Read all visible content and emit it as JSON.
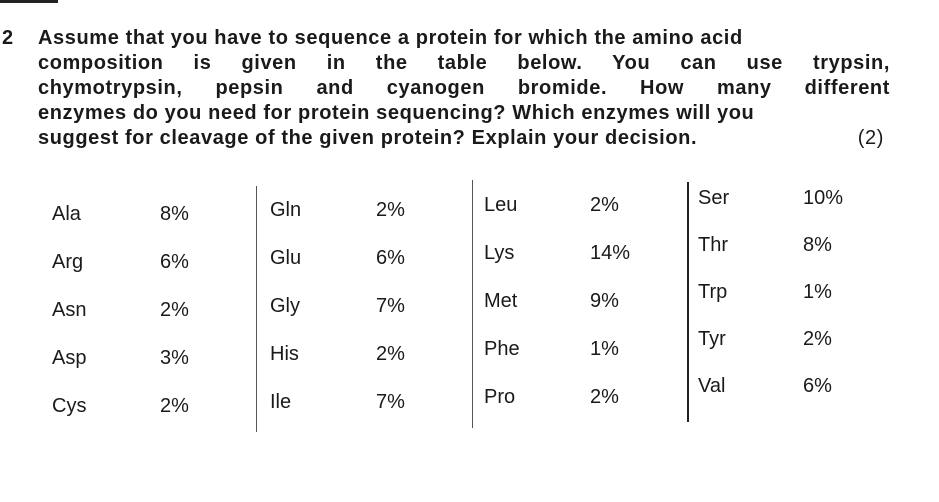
{
  "question": {
    "number": "2",
    "lines": [
      "Assume that you have to sequence a protein for which the amino acid",
      "composition is given in the table below. You can use trypsin,",
      "chymotrypsin, pepsin and cyanogen bromide. How many different",
      "enzymes do you need for protein sequencing? Which enzymes will you",
      "suggest for cleavage of the given protein? Explain your decision."
    ],
    "marks": "(2)"
  },
  "composition": {
    "columns": [
      [
        {
          "name": "Ala",
          "pct": "8%"
        },
        {
          "name": "Arg",
          "pct": "6%"
        },
        {
          "name": "Asn",
          "pct": "2%"
        },
        {
          "name": "Asp",
          "pct": "3%"
        },
        {
          "name": "Cys",
          "pct": "2%"
        }
      ],
      [
        {
          "name": "Gln",
          "pct": "2%"
        },
        {
          "name": "Glu",
          "pct": "6%"
        },
        {
          "name": "Gly",
          "pct": "7%"
        },
        {
          "name": "His",
          "pct": "2%"
        },
        {
          "name": "Ile",
          "pct": "7%"
        }
      ],
      [
        {
          "name": "Leu",
          "pct": "2%"
        },
        {
          "name": "Lys",
          "pct": "14%"
        },
        {
          "name": "Met",
          "pct": "9%"
        },
        {
          "name": "Phe",
          "pct": "1%"
        },
        {
          "name": "Pro",
          "pct": "2%"
        }
      ],
      [
        {
          "name": "Ser",
          "pct": "10%"
        },
        {
          "name": "Thr",
          "pct": "8%"
        },
        {
          "name": "Trp",
          "pct": "1%"
        },
        {
          "name": "Tyr",
          "pct": "2%"
        },
        {
          "name": "Val",
          "pct": "6%"
        }
      ]
    ]
  }
}
